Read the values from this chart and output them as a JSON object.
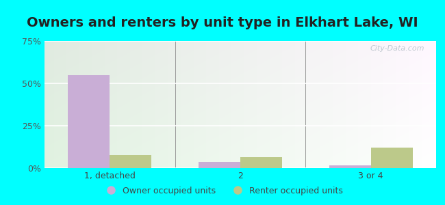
{
  "title": "Owners and renters by unit type in Elkhart Lake, WI",
  "categories": [
    "1, detached",
    "2",
    "3 or 4"
  ],
  "owner_values": [
    55.0,
    3.5,
    1.5
  ],
  "renter_values": [
    7.5,
    6.5,
    12.0
  ],
  "owner_color": "#c9aed6",
  "renter_color": "#bcc98a",
  "ylim": [
    0,
    75
  ],
  "yticks": [
    0,
    25,
    50,
    75
  ],
  "ytick_labels": [
    "0%",
    "25%",
    "50%",
    "75%"
  ],
  "outer_bg": "#00ffff",
  "bar_width": 0.32,
  "legend_owner": "Owner occupied units",
  "legend_renter": "Renter occupied units",
  "watermark": "City-Data.com",
  "title_fontsize": 14,
  "axis_fontsize": 9,
  "legend_fontsize": 9,
  "bg_color_top_left": "#cce8cc",
  "bg_color_top_right": "#f0f8f0",
  "bg_color_bottom": "#e8f8e8"
}
